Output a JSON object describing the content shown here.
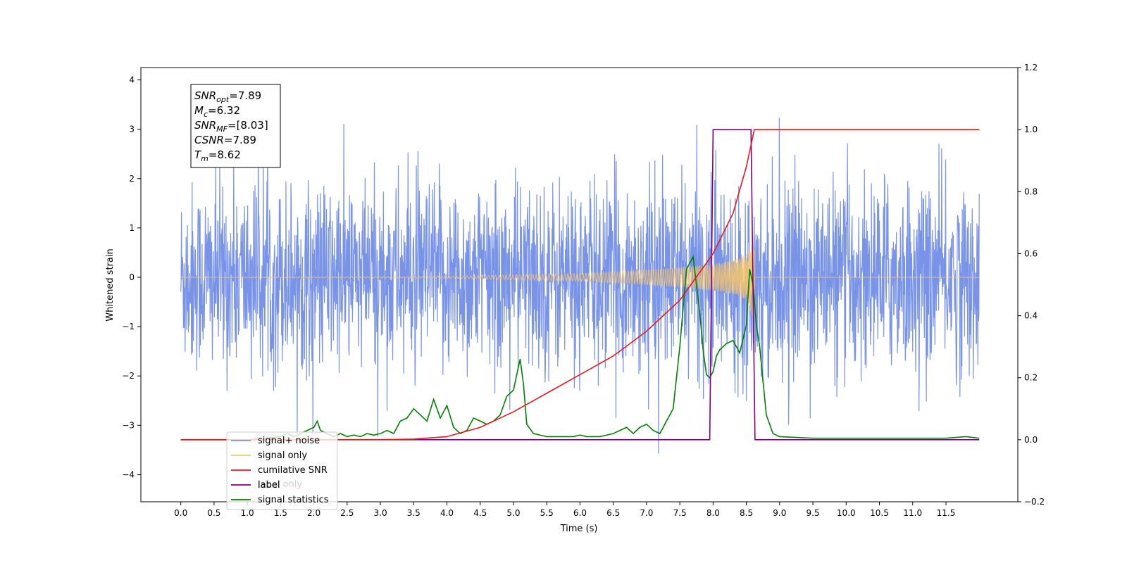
{
  "chart_data": {
    "type": "line",
    "xlabel": "Time (s)",
    "ylabel_left": "Whitened strain",
    "xlim": [
      -0.6,
      12.58
    ],
    "ylim_left": [
      -4.55,
      4.25
    ],
    "ylim_right": [
      -0.2,
      1.2
    ],
    "x_ticks": [
      0.0,
      0.5,
      1.0,
      1.5,
      2.0,
      2.5,
      3.0,
      3.5,
      4.0,
      4.5,
      5.0,
      5.5,
      6.0,
      6.5,
      7.0,
      7.5,
      8.0,
      8.5,
      9.0,
      9.5,
      10.0,
      10.5,
      11.0,
      11.5
    ],
    "x_tick_labels": [
      "0.0",
      "0.5",
      "1.0",
      "1.5",
      "2.0",
      "2.5",
      "3.0",
      "3.5",
      "4.0",
      "4.5",
      "5.0",
      "5.5",
      "6.0",
      "6.5",
      "7.0",
      "7.5",
      "8.0",
      "8.5",
      "9.0",
      "9.5",
      "10.0",
      "10.5",
      "11.0",
      "11.5"
    ],
    "y_left_ticks": [
      -4,
      -3,
      -2,
      -1,
      0,
      1,
      2,
      3,
      4
    ],
    "y_left_tick_labels": [
      "−4",
      "−3",
      "−2",
      "−1",
      "0",
      "1",
      "2",
      "3",
      "4"
    ],
    "y_right_ticks": [
      -0.2,
      0.0,
      0.2,
      0.4,
      0.6,
      0.8,
      1.0,
      1.2
    ],
    "y_right_tick_labels": [
      "−0.2",
      "0.0",
      "0.2",
      "0.4",
      "0.6",
      "0.8",
      "1.0",
      "1.2"
    ],
    "grid": false,
    "legend_position": "lower-left",
    "series": [
      {
        "name": "signal+ noise",
        "axis": "left",
        "color": "#7893e8",
        "noise_std": 0.95,
        "x_range": [
          0.0,
          12.0
        ]
      },
      {
        "name": "signal only",
        "axis": "left",
        "color": "#f7c66a",
        "chirp_end": 8.62,
        "envelope_x": [
          0.0,
          4.0,
          6.0,
          7.0,
          7.5,
          8.0,
          8.3,
          8.5,
          8.62,
          8.63
        ],
        "envelope_y": [
          0.0,
          0.02,
          0.08,
          0.15,
          0.2,
          0.27,
          0.35,
          0.45,
          0.9,
          0.0
        ]
      },
      {
        "name": "cumilative SNR",
        "axis": "right",
        "color": "#e41a1c",
        "x": [
          0.0,
          3.0,
          3.5,
          4.0,
          4.5,
          5.0,
          5.5,
          6.0,
          6.5,
          7.0,
          7.5,
          8.0,
          8.3,
          8.5,
          8.6,
          8.62,
          12.0
        ],
        "y": [
          0.0,
          0.0,
          0.002,
          0.01,
          0.04,
          0.09,
          0.15,
          0.21,
          0.27,
          0.35,
          0.45,
          0.6,
          0.73,
          0.88,
          0.98,
          1.0,
          1.0
        ]
      },
      {
        "name": "label",
        "axis": "right",
        "color": "#800080",
        "x": [
          0.0,
          7.95,
          8.0,
          8.57,
          8.63,
          12.0
        ],
        "y": [
          0.0,
          0.0,
          1.0,
          1.0,
          0.0,
          0.0
        ]
      },
      {
        "name": "label only",
        "axis": "right",
        "color": "#d8c8d8",
        "x": [],
        "y": []
      },
      {
        "name": "signal statistics",
        "axis": "right",
        "color": "#008000",
        "x": [
          0.0,
          1.0,
          1.5,
          1.6,
          1.7,
          1.8,
          1.9,
          2.0,
          2.05,
          2.1,
          2.2,
          2.3,
          2.4,
          2.5,
          2.6,
          2.7,
          2.8,
          2.9,
          3.0,
          3.1,
          3.2,
          3.3,
          3.4,
          3.5,
          3.6,
          3.7,
          3.8,
          3.9,
          4.0,
          4.1,
          4.2,
          4.3,
          4.4,
          4.5,
          4.6,
          4.7,
          4.8,
          4.9,
          5.0,
          5.1,
          5.15,
          5.2,
          5.3,
          5.4,
          5.5,
          5.6,
          5.7,
          5.8,
          5.9,
          6.0,
          6.1,
          6.2,
          6.3,
          6.4,
          6.5,
          6.6,
          6.7,
          6.8,
          6.9,
          7.0,
          7.1,
          7.2,
          7.3,
          7.4,
          7.5,
          7.6,
          7.7,
          7.8,
          7.85,
          7.9,
          7.95,
          8.0,
          8.05,
          8.1,
          8.2,
          8.3,
          8.4,
          8.5,
          8.55,
          8.6,
          8.65,
          8.7,
          8.8,
          8.9,
          9.0,
          9.5,
          10.0,
          11.0,
          11.5,
          11.8,
          12.0
        ],
        "y": [
          0.0,
          0.0,
          0.01,
          0.02,
          0.01,
          0.02,
          0.03,
          0.04,
          0.06,
          0.03,
          0.02,
          0.01,
          0.02,
          0.01,
          0.015,
          0.01,
          0.02,
          0.015,
          0.02,
          0.03,
          0.02,
          0.06,
          0.07,
          0.1,
          0.08,
          0.06,
          0.13,
          0.07,
          0.11,
          0.04,
          0.02,
          0.03,
          0.07,
          0.06,
          0.05,
          0.06,
          0.08,
          0.14,
          0.16,
          0.26,
          0.18,
          0.05,
          0.02,
          0.015,
          0.01,
          0.01,
          0.01,
          0.01,
          0.01,
          0.015,
          0.01,
          0.01,
          0.01,
          0.015,
          0.02,
          0.03,
          0.04,
          0.02,
          0.04,
          0.05,
          0.03,
          0.02,
          0.06,
          0.1,
          0.3,
          0.55,
          0.59,
          0.41,
          0.29,
          0.21,
          0.2,
          0.22,
          0.27,
          0.29,
          0.31,
          0.32,
          0.28,
          0.37,
          0.55,
          0.5,
          0.37,
          0.3,
          0.08,
          0.02,
          0.01,
          0.005,
          0.005,
          0.005,
          0.005,
          0.01,
          0.005
        ]
      }
    ],
    "annotation": {
      "lines": [
        {
          "sym": "SNR",
          "sub": "opt",
          "value": "=7.89"
        },
        {
          "sym": "M",
          "sub": "c",
          "value": "=6.32"
        },
        {
          "sym": "SNR",
          "sub": "MF",
          "value": "=[8.03]"
        },
        {
          "sym": "CSNR",
          "sub": "",
          "value": "=7.89"
        },
        {
          "sym": "T",
          "sub": "m",
          "value": "=8.62"
        }
      ]
    }
  }
}
